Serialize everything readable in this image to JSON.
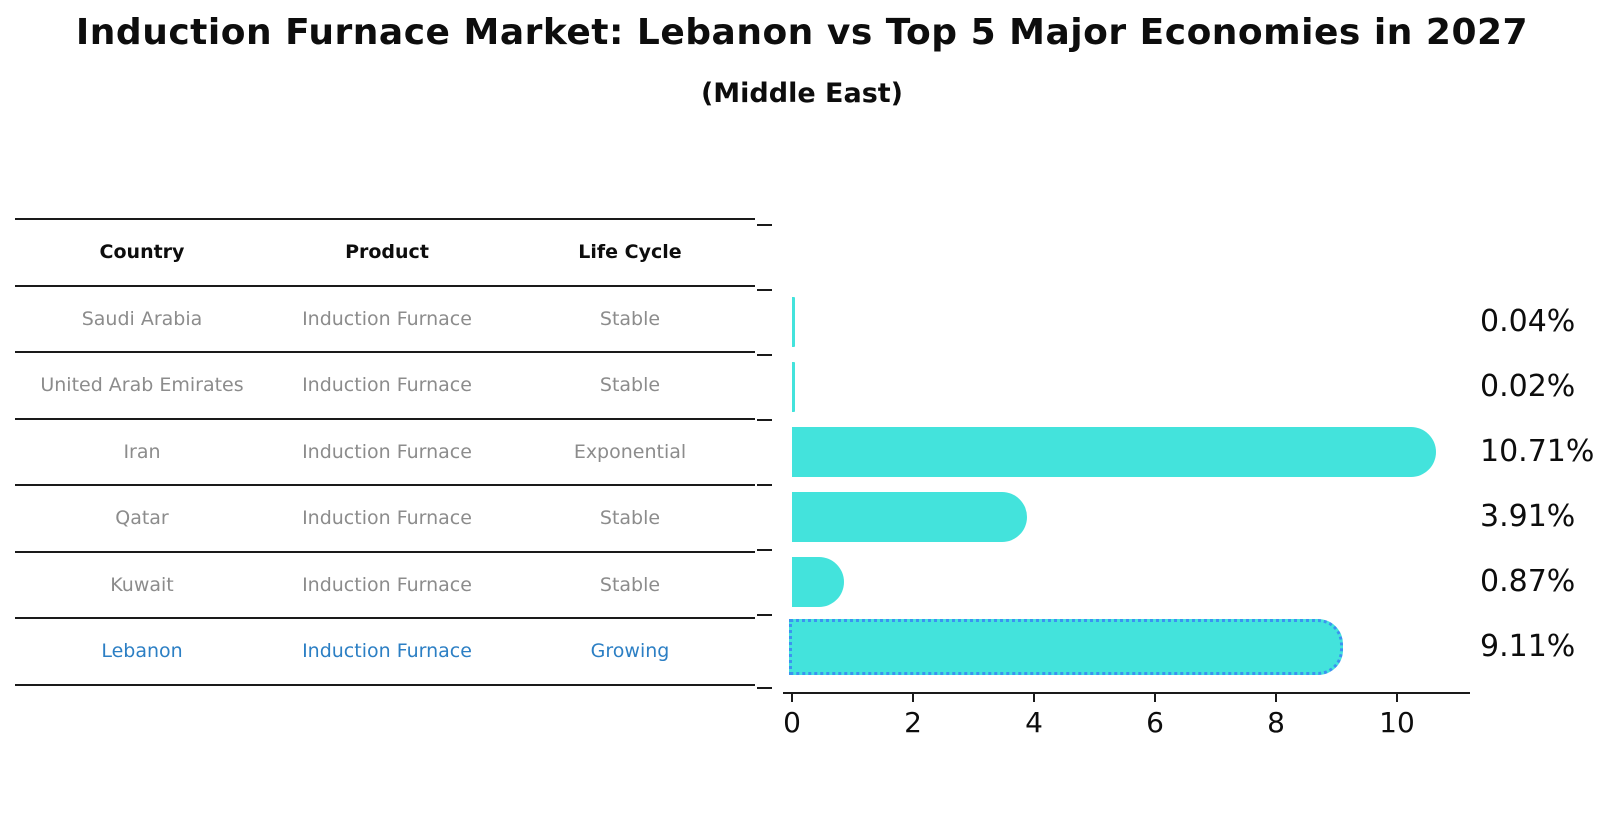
{
  "title": "Induction Furnace Market: Lebanon vs Top 5 Major Economies in 2027",
  "subtitle": "(Middle East)",
  "table": {
    "headers": [
      "Country",
      "Product",
      "Life Cycle"
    ],
    "rows": [
      {
        "country": "Saudi Arabia",
        "product": "Induction Furnace",
        "life_cycle": "Stable",
        "highlight": false
      },
      {
        "country": "United Arab Emirates",
        "product": "Induction Furnace",
        "life_cycle": "Stable",
        "highlight": false
      },
      {
        "country": "Iran",
        "product": "Induction Furnace",
        "life_cycle": "Exponential",
        "highlight": false
      },
      {
        "country": "Qatar",
        "product": "Induction Furnace",
        "life_cycle": "Stable",
        "highlight": false
      },
      {
        "country": "Kuwait",
        "product": "Induction Furnace",
        "life_cycle": "Stable",
        "highlight": false
      },
      {
        "country": "Lebanon",
        "product": "Induction Furnace",
        "life_cycle": "Growing",
        "highlight": true
      }
    ]
  },
  "chart_data": {
    "type": "bar",
    "orientation": "horizontal",
    "title": "Induction Furnace Market: Lebanon vs Top 5 Major Economies in 2027 (Middle East)",
    "categories": [
      "Saudi Arabia",
      "United Arab Emirates",
      "Iran",
      "Qatar",
      "Kuwait",
      "Lebanon"
    ],
    "values": [
      0.04,
      0.02,
      10.71,
      3.91,
      0.87,
      9.11
    ],
    "value_labels": [
      "0.04%",
      "0.02%",
      "10.71%",
      "3.91%",
      "0.87%",
      "9.11%"
    ],
    "unit": "%",
    "x_ticks": [
      "0",
      "2",
      "4",
      "6",
      "8",
      "10"
    ],
    "xlim": [
      0,
      11.3
    ],
    "grid": false,
    "legend": false,
    "bar_color": "#43e3dc",
    "highlight_color": "#1e7de9",
    "highlight_index": 5
  },
  "colors": {
    "bar": "#43e3dc",
    "highlight_bar": "#1e7de9",
    "highlight_text": "#2c7fc4",
    "table_text": "#8c8c8c",
    "axis": "#1a1a1a"
  }
}
